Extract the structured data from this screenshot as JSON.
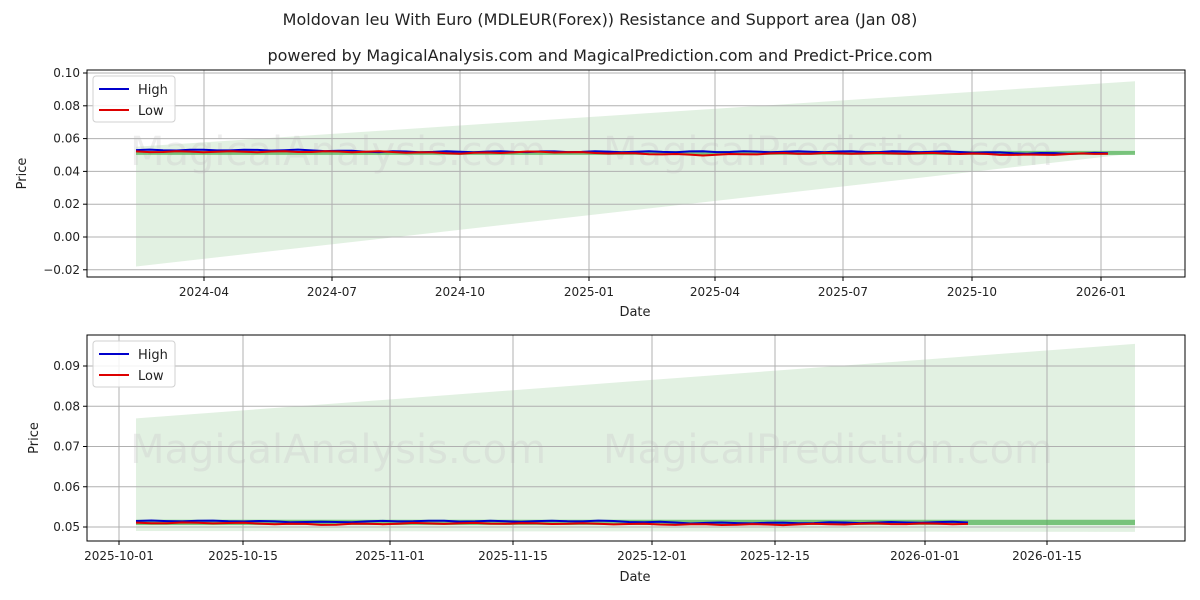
{
  "header": {
    "title": "Moldovan leu With Euro (MDLEUR(Forex)) Resistance and Support area (Jan 08)",
    "subtitle": "powered by MagicalAnalysis.com and MagicalPrediction.com and Predict-Price.com"
  },
  "watermarks": [
    "MagicalAnalysis.com",
    "MagicalPrediction.com"
  ],
  "colors": {
    "high": "#0000cc",
    "low": "#dd0000",
    "band": "#4caf50",
    "cone": "#d8ecd8"
  },
  "chart_data": [
    {
      "type": "line",
      "title": "Full history",
      "xlabel": "Date",
      "ylabel": "Price",
      "ylim": [
        -0.025,
        0.101
      ],
      "grid": true,
      "legend_position": "upper left",
      "legend": [
        "High",
        "Low"
      ],
      "x_ticks": [
        "2024-04",
        "2024-07",
        "2024-10",
        "2025-01",
        "2025-04",
        "2025-07",
        "2025-10",
        "2026-01"
      ],
      "y_ticks": [
        "−0.02",
        "0.00",
        "0.02",
        "0.04",
        "0.06",
        "0.08",
        "0.10"
      ],
      "x": [
        "2024-02",
        "2024-04",
        "2024-06",
        "2024-08",
        "2024-10",
        "2024-12",
        "2025-02",
        "2025-04",
        "2025-06",
        "2025-08",
        "2025-10",
        "2025-12",
        "2026-01"
      ],
      "series": [
        {
          "name": "High",
          "values": [
            0.053,
            0.053,
            0.053,
            0.052,
            0.052,
            0.052,
            0.052,
            0.052,
            0.052,
            0.052,
            0.052,
            0.051,
            0.051
          ]
        },
        {
          "name": "Low",
          "values": [
            0.052,
            0.052,
            0.052,
            0.052,
            0.051,
            0.052,
            0.051,
            0.05,
            0.051,
            0.051,
            0.051,
            0.05,
            0.051
          ]
        }
      ],
      "support_resistance_band": [
        0.0505,
        0.0525
      ],
      "prediction_cone": {
        "start": [
          -0.018,
          0.055
        ],
        "end": [
          0.051,
          0.095
        ]
      }
    },
    {
      "type": "line",
      "title": "Recent detail",
      "xlabel": "Date",
      "ylabel": "Price",
      "ylim": [
        0.046,
        0.098
      ],
      "grid": true,
      "legend_position": "upper left",
      "legend": [
        "High",
        "Low"
      ],
      "x_ticks": [
        "2025-10-01",
        "2025-10-15",
        "2025-11-01",
        "2025-11-15",
        "2025-12-01",
        "2025-12-15",
        "2026-01-01",
        "2026-01-15"
      ],
      "y_ticks": [
        "0.05",
        "0.06",
        "0.07",
        "0.08",
        "0.09"
      ],
      "x": [
        "2025-10-06",
        "2025-10-15",
        "2025-10-25",
        "2025-11-05",
        "2025-11-15",
        "2025-11-25",
        "2025-12-05",
        "2025-12-15",
        "2025-12-25",
        "2026-01-06"
      ],
      "series": [
        {
          "name": "High",
          "values": [
            0.0515,
            0.0515,
            0.0512,
            0.0515,
            0.0514,
            0.0515,
            0.051,
            0.051,
            0.0511,
            0.0512
          ]
        },
        {
          "name": "Low",
          "values": [
            0.051,
            0.051,
            0.0506,
            0.0509,
            0.0509,
            0.0508,
            0.0506,
            0.0506,
            0.0508,
            0.0508
          ]
        }
      ],
      "support_resistance_band": [
        0.0505,
        0.0518
      ],
      "prediction_cone": {
        "start": [
          0.049,
          0.077
        ],
        "end": [
          0.0488,
          0.0955
        ]
      }
    }
  ]
}
